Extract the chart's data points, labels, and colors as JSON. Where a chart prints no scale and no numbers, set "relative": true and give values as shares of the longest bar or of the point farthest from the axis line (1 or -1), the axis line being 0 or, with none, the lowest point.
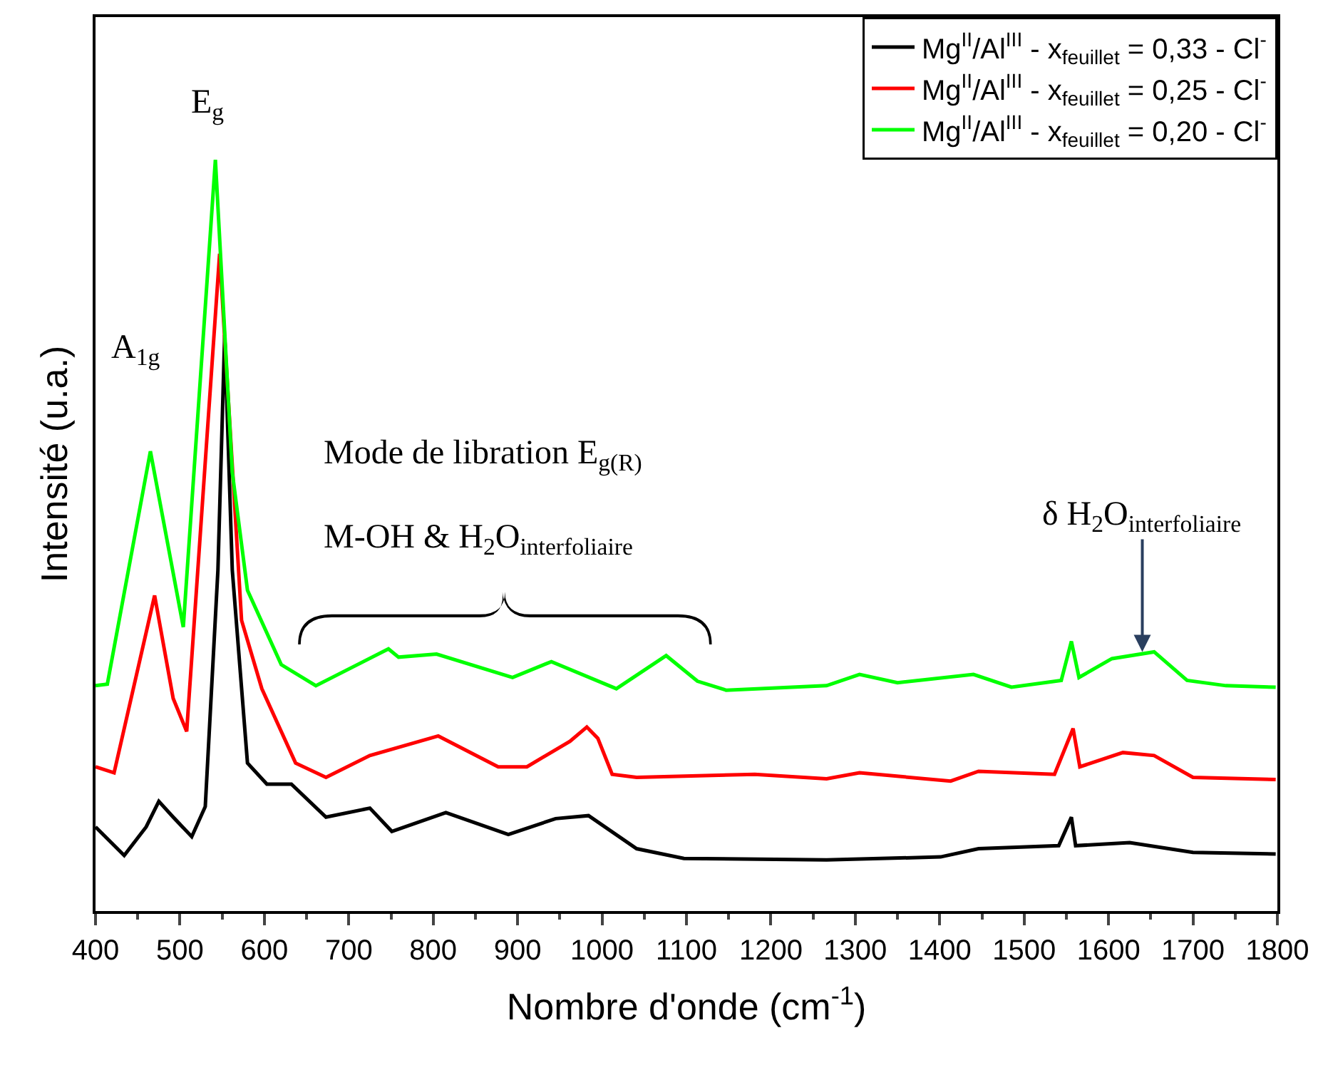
{
  "chart_data": {
    "type": "line",
    "relative": true,
    "xlabel": "Nombre d'onde (cm$^{-1}$)",
    "ylabel": "Intensité (u.a.)",
    "xlim": [
      400,
      1800
    ],
    "xticks": [
      400,
      500,
      600,
      700,
      800,
      900,
      1000,
      1100,
      1200,
      1300,
      1400,
      1500,
      1600,
      1700,
      1800
    ],
    "tick_labels": "x",
    "legend": "top right",
    "line_style": "solid",
    "marker": "none",
    "annotations": [
      {
        "text": "A$_{1g}$",
        "x": 465,
        "y": 0.612
      },
      {
        "text": "E$_{g}$",
        "x": 542,
        "y": 1.0
      },
      "Mode de libration E$_{g(R)}$",
      "M-OH & H$_{2}$O$_{interfoliaire}$",
      {
        "text": "δ H$_{2}$O$_{interfoliaire}$",
        "x": 1640,
        "y": 0.345
      }
    ],
    "series": [
      {
        "name": "Mg$^{II}$/Al$^{III}$ - x$_{feuillet}$ = 0,33 - Cl$^{-}$",
        "color": "#000000",
        "x": [
          400,
          434,
          460,
          475,
          492,
          514,
          530,
          545,
          553,
          562,
          580,
          603,
          632,
          673,
          725,
          751,
          815,
          889,
          945,
          984,
          1041,
          1097,
          1266,
          1401,
          1446,
          1541,
          1556,
          1561,
          1625,
          1700,
          1798
        ],
        "values": [
          0.112,
          0.074,
          0.112,
          0.146,
          0.125,
          0.099,
          0.139,
          0.454,
          0.767,
          0.454,
          0.197,
          0.169,
          0.169,
          0.125,
          0.137,
          0.106,
          0.131,
          0.102,
          0.123,
          0.127,
          0.083,
          0.07,
          0.068,
          0.072,
          0.083,
          0.087,
          0.125,
          0.087,
          0.091,
          0.078,
          0.076
        ]
      },
      {
        "name": "Mg$^{II}$/Al$^{III}$ - x$_{feuillet}$ = 0,25 - Cl$^{-}$",
        "color": "#ff0000",
        "x": [
          400,
          422,
          470,
          492,
          508,
          547,
          573,
          597,
          637,
          673,
          725,
          806,
          877,
          911,
          962,
          982,
          995,
          1012,
          1041,
          1181,
          1266,
          1305,
          1413,
          1446,
          1536,
          1558,
          1566,
          1617,
          1654,
          1700,
          1798
        ],
        "values": [
          0.192,
          0.184,
          0.42,
          0.283,
          0.239,
          0.875,
          0.387,
          0.296,
          0.197,
          0.178,
          0.207,
          0.233,
          0.192,
          0.192,
          0.226,
          0.245,
          0.23,
          0.182,
          0.178,
          0.182,
          0.176,
          0.184,
          0.173,
          0.186,
          0.182,
          0.243,
          0.192,
          0.211,
          0.207,
          0.178,
          0.175
        ]
      },
      {
        "name": "Mg$^{II}$/Al$^{III}$ - x$_{feuillet}$ = 0,20 - Cl$^{-}$",
        "color": "#00ff00",
        "x": [
          400,
          414,
          465,
          504,
          542,
          562,
          580,
          620,
          661,
          747,
          759,
          804,
          894,
          940,
          1017,
          1076,
          1113,
          1147,
          1266,
          1305,
          1350,
          1440,
          1485,
          1544,
          1556,
          1565,
          1604,
          1654,
          1693,
          1739,
          1798
        ],
        "values": [
          0.3,
          0.302,
          0.612,
          0.378,
          1.0,
          0.584,
          0.427,
          0.328,
          0.3,
          0.349,
          0.338,
          0.342,
          0.311,
          0.332,
          0.296,
          0.34,
          0.306,
          0.294,
          0.3,
          0.315,
          0.304,
          0.315,
          0.298,
          0.307,
          0.359,
          0.311,
          0.336,
          0.345,
          0.307,
          0.3,
          0.298
        ]
      }
    ]
  }
}
